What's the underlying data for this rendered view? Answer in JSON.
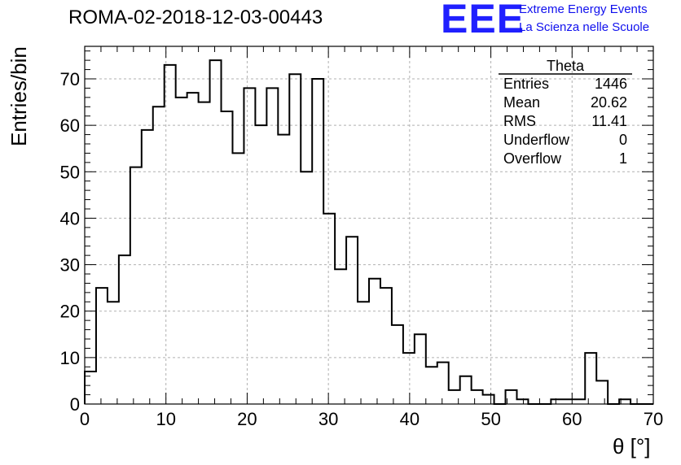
{
  "chart_data": {
    "type": "histogram",
    "title": "ROMA-02-2018-12-03-00443",
    "xlabel": "θ [°]",
    "ylabel": "Entries/bin",
    "xlim": [
      0,
      70
    ],
    "ylim": [
      0,
      77
    ],
    "grid": true,
    "bin_width": 1.4,
    "x_ticks": [
      0,
      10,
      20,
      30,
      40,
      50,
      60,
      70
    ],
    "y_ticks": [
      0,
      10,
      20,
      30,
      40,
      50,
      60,
      70
    ],
    "values": [
      7,
      25,
      22,
      32,
      51,
      59,
      64,
      73,
      66,
      67,
      65,
      74,
      63,
      54,
      68,
      60,
      68,
      58,
      71,
      50,
      70,
      41,
      29,
      36,
      22,
      27,
      25,
      17,
      11,
      15,
      8,
      9,
      3,
      6,
      3,
      2,
      0,
      3,
      1,
      0,
      0,
      1,
      1,
      1,
      11,
      5,
      0,
      1,
      0,
      0
    ]
  },
  "stats_box": {
    "title": "Theta",
    "entries_label": "Entries",
    "entries_value": "1446",
    "mean_label": "Mean",
    "mean_value": "20.62",
    "rms_label": "RMS",
    "rms_value": "11.41",
    "underflow_label": "Underflow",
    "underflow_value": "0",
    "overflow_label": "Overflow",
    "overflow_value": "1"
  },
  "logo": {
    "text": "EEE",
    "line1": "Extreme Energy Events",
    "line2": "La Scienza nelle Scuole",
    "color": "#2020ff"
  }
}
